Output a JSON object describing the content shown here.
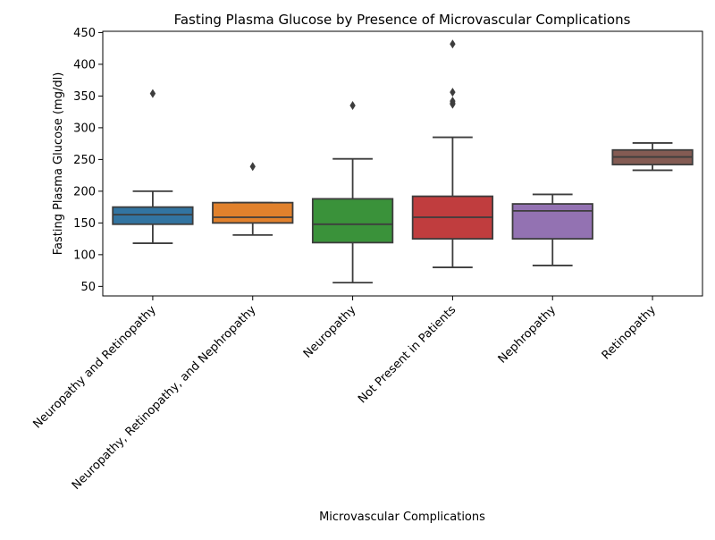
{
  "chart_data": {
    "type": "box",
    "title": "Fasting Plasma Glucose by Presence of Microvascular Complications",
    "xlabel": "Microvascular Complications",
    "ylabel": "Fasting Plasma Glucose (mg/dl)",
    "ylim": [
      35,
      452
    ],
    "yticks": [
      50,
      100,
      150,
      200,
      250,
      300,
      350,
      400,
      450
    ],
    "grid": false,
    "legend": "none",
    "categories": [
      "Neuropathy and Retinopathy",
      "Neuropathy, Retinopathy, and Nephropathy",
      "Neuropathy",
      "Not Present in Patients",
      "Nephropathy",
      "Retinopathy"
    ],
    "boxes": [
      {
        "category": "Neuropathy and Retinopathy",
        "whisker_low": 118,
        "q1": 148,
        "median": 163,
        "q3": 175,
        "whisker_high": 200,
        "outliers": [
          354
        ],
        "color": "#3274a1"
      },
      {
        "category": "Neuropathy, Retinopathy, and Nephropathy",
        "whisker_low": 131,
        "q1": 150,
        "median": 159,
        "q3": 182,
        "whisker_high": 182,
        "outliers": [
          239
        ],
        "color": "#e1812c"
      },
      {
        "category": "Neuropathy",
        "whisker_low": 56,
        "q1": 119,
        "median": 148,
        "q3": 188,
        "whisker_high": 251,
        "outliers": [
          335
        ],
        "color": "#3a923a"
      },
      {
        "category": "Not Present in Patients",
        "whisker_low": 80,
        "q1": 125,
        "median": 159,
        "q3": 192,
        "whisker_high": 285,
        "outliers": [
          432,
          356,
          342,
          339,
          337
        ],
        "color": "#c03d3e"
      },
      {
        "category": "Nephropathy",
        "whisker_low": 83,
        "q1": 125,
        "median": 169,
        "q3": 180,
        "whisker_high": 195,
        "outliers": [],
        "color": "#9372b2"
      },
      {
        "category": "Retinopathy",
        "whisker_low": 233,
        "q1": 242,
        "median": 254,
        "q3": 265,
        "whisker_high": 276,
        "outliers": [],
        "color": "#845b53"
      }
    ]
  }
}
